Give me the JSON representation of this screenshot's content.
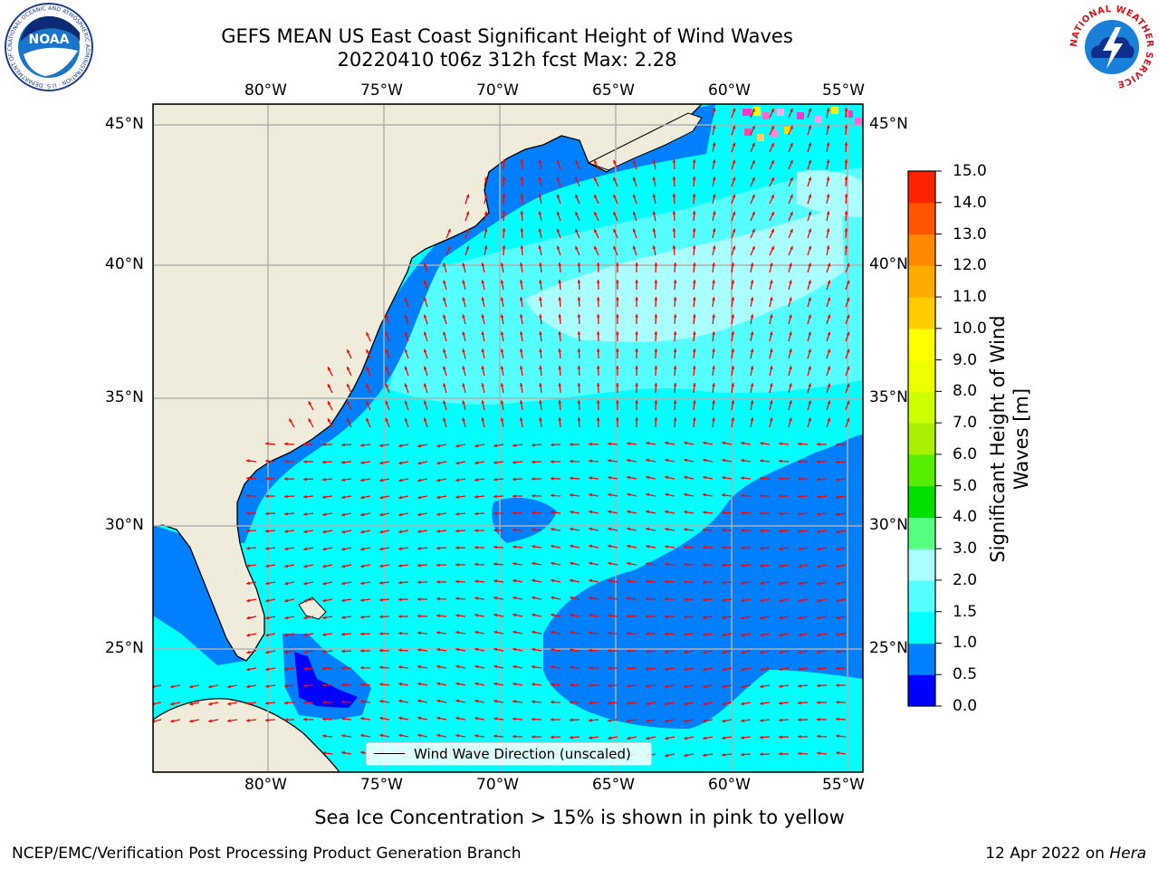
{
  "header": {
    "title_line1": "GEFS MEAN US East Coast Significant Height of Wind Waves",
    "title_line2": "20220410 t06z 312h fcst   Max: 2.28"
  },
  "map": {
    "lon_labels": [
      "80°W",
      "75°W",
      "70°W",
      "65°W",
      "60°W",
      "55°W"
    ],
    "lat_labels": [
      "45°N",
      "40°N",
      "35°N",
      "30°N",
      "25°N"
    ],
    "legend_label": "Wind Wave Direction (unscaled)",
    "colors": {
      "land": "#efecdb",
      "ocean_1_1_5": "#00ffff",
      "ocean_1_5_2": "#55ffff",
      "ocean_2_3": "#aaffff",
      "ocean_0_5_1": "#0080ff",
      "ocean_0_0_5": "#0000ff",
      "arrow": "#ff0000",
      "grid": "#b0b0b0"
    }
  },
  "colorbar": {
    "label": "Significant Height of Wind Waves [m]",
    "ticks": [
      "0.0",
      "0.5",
      "1.0",
      "1.5",
      "2.0",
      "3.0",
      "4.0",
      "5.0",
      "6.0",
      "7.0",
      "8.0",
      "9.0",
      "10.0",
      "11.0",
      "12.0",
      "13.0",
      "14.0",
      "15.0"
    ],
    "colors": [
      "#0000ff",
      "#0080ff",
      "#00ffff",
      "#55ffff",
      "#aaffff",
      "#55ff80",
      "#00e000",
      "#55ee00",
      "#aaee00",
      "#ccff00",
      "#eeff00",
      "#ffff00",
      "#ffcc00",
      "#ffaa00",
      "#ff8800",
      "#ff5500",
      "#ff2200",
      "#ff0000"
    ]
  },
  "notes": {
    "ice_note": "Sea Ice Concentration > 15% is shown in pink to yellow",
    "footer_left": "NCEP/EMC/Verification Post Processing Product Generation Branch",
    "footer_date": "12 Apr 2022 on ",
    "footer_machine": "Hera"
  },
  "logos": {
    "noaa_text": "NOAA",
    "noaa_ring": "NATIONAL OCEANIC AND ATMOSPHERIC ADMINISTRATION · U.S. DEPARTMENT OF COMMERCE",
    "nws_ring": "NATIONAL WEATHER SERVICE"
  }
}
